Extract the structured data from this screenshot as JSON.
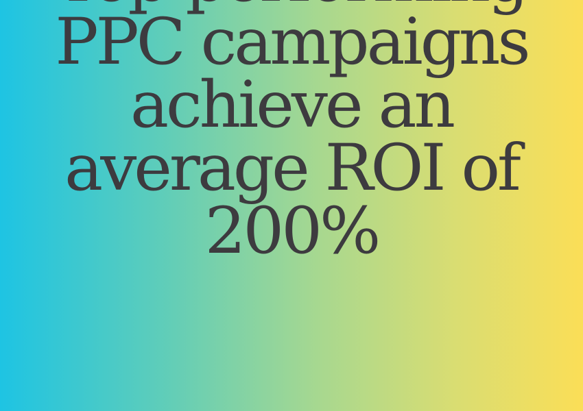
{
  "headline": {
    "lines": [
      "Top-performing",
      "PPC campaigns",
      "achieve an",
      "average ROI of",
      "200%"
    ]
  },
  "colors": {
    "gradient_left": "#1ec4e3",
    "gradient_mid": "#a8d88f",
    "gradient_right": "#fbde57",
    "text": "#3d3b3f"
  }
}
